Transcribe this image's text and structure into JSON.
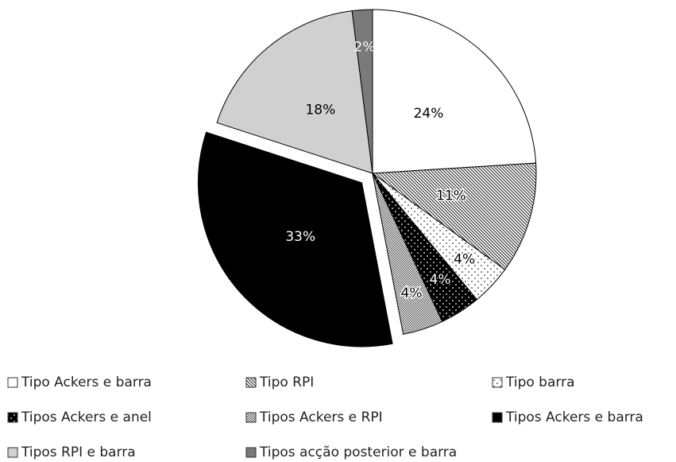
{
  "chart_data": {
    "type": "pie",
    "categories": [
      "Tipo Ackers e barra",
      "Tipo RPI",
      "Tipo barra",
      "Tipos Ackers e anel",
      "Tipos Ackers e RPI",
      "Tipos Ackers e barra",
      "Tipos RPI e barra",
      "Tipos acção posterior e barra"
    ],
    "values": [
      24,
      11,
      4,
      4,
      4,
      33,
      18,
      2
    ],
    "value_labels": [
      "24%",
      "11%",
      "4%",
      "4%",
      "4%",
      "33%",
      "18%",
      "2%"
    ],
    "colors": [
      "#ffffff",
      "#ffffff",
      "#ffffff",
      "#000000",
      "#ffffff",
      "#000000",
      "#d0d0d0",
      "#7a7a7a"
    ],
    "patterns": [
      "solid",
      "diagonal",
      "dots",
      "dots-on-black",
      "grid",
      "solid",
      "solid",
      "solid"
    ],
    "exploded": [
      false,
      false,
      false,
      false,
      false,
      true,
      false,
      false
    ],
    "legend": "bottom"
  }
}
